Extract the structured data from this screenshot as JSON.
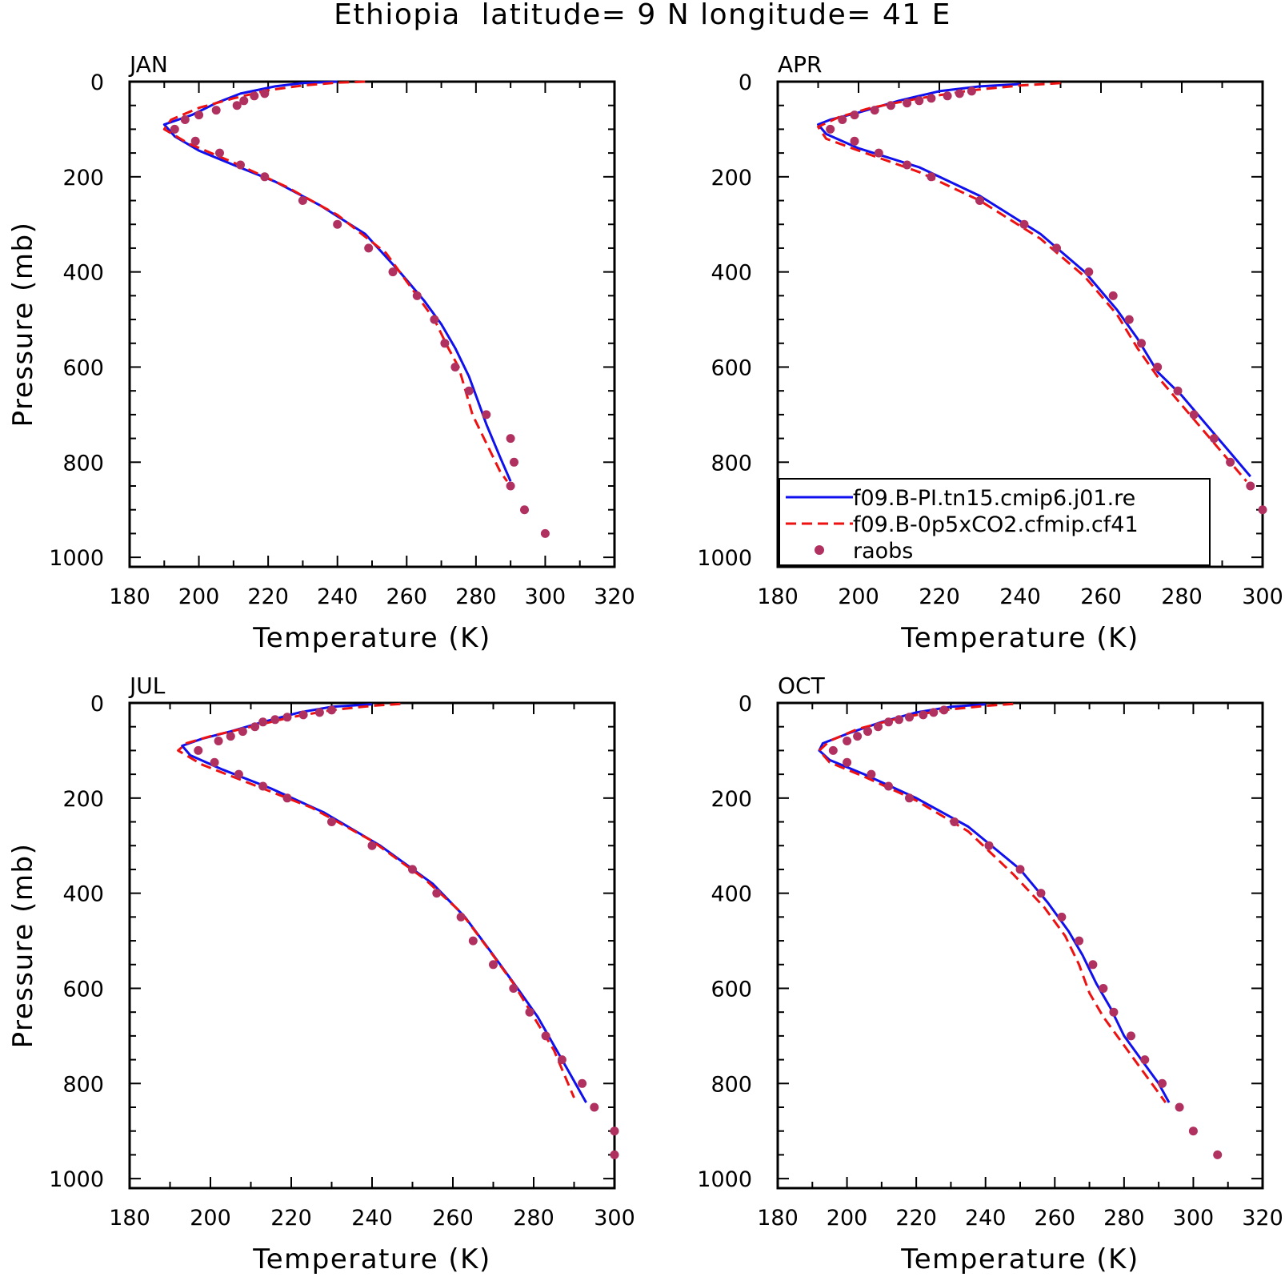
{
  "title": "Ethiopia  latitude= 9 N longitude= 41 E",
  "colors": {
    "model1": "#1010ee",
    "model2": "#ee1111",
    "obs": "#b03060"
  },
  "legend": {
    "placement": "inside APR panel, lower-left",
    "entries": [
      "f09.B-PI.tn15.cmip6.j01.re",
      "f09.B-0p5xCO2.cfmip.cf41",
      "raobs"
    ]
  },
  "chart_data": [
    {
      "type": "line",
      "panel": "JAN",
      "xlabel": "Temperature (K)",
      "ylabel": "Pressure (mb)",
      "xlim": [
        180,
        320
      ],
      "ylim": [
        1020,
        0
      ],
      "xticks": [
        "180",
        "200",
        "220",
        "240",
        "260",
        "280",
        "300",
        "320"
      ],
      "yticks": [
        "0",
        "200",
        "400",
        "600",
        "800",
        "1000"
      ],
      "series": [
        {
          "name": "f09.B-PI.tn15.cmip6.j01.re",
          "style": "solid",
          "x": [
            240,
            230,
            222,
            212,
            205,
            198,
            190,
            193,
            200,
            210,
            222,
            235,
            248,
            258,
            265,
            270,
            274,
            278,
            280,
            283,
            287,
            290
          ],
          "y": [
            0,
            3,
            10,
            25,
            45,
            70,
            90,
            115,
            145,
            175,
            210,
            260,
            320,
            400,
            460,
            510,
            560,
            620,
            660,
            720,
            790,
            840
          ]
        },
        {
          "name": "f09.B-0p5xCO2.cfmip.cf41",
          "style": "dashed",
          "x": [
            248,
            240,
            230,
            220,
            210,
            200,
            192,
            190,
            197,
            210,
            225,
            240,
            254,
            262,
            268,
            272,
            275,
            277,
            279,
            283,
            287,
            289
          ],
          "y": [
            0,
            2,
            8,
            18,
            35,
            55,
            80,
            100,
            130,
            170,
            220,
            280,
            360,
            440,
            500,
            560,
            600,
            650,
            700,
            760,
            820,
            840
          ]
        }
      ],
      "observations": {
        "name": "raobs",
        "x": [
          219,
          216,
          213,
          211,
          205,
          200,
          196,
          193,
          199,
          206,
          212,
          219,
          230,
          240,
          249,
          256,
          263,
          268,
          271,
          274,
          278,
          283,
          290,
          291,
          290,
          294,
          300
        ],
        "y": [
          25,
          30,
          40,
          50,
          60,
          70,
          80,
          100,
          125,
          150,
          175,
          200,
          250,
          300,
          350,
          400,
          450,
          500,
          550,
          600,
          650,
          700,
          750,
          800,
          850,
          900,
          950
        ]
      }
    },
    {
      "type": "line",
      "panel": "APR",
      "xlabel": "Temperature (K)",
      "ylabel": "",
      "xlim": [
        180,
        300
      ],
      "ylim": [
        1020,
        0
      ],
      "xticks": [
        "180",
        "200",
        "220",
        "240",
        "260",
        "280",
        "300"
      ],
      "yticks": [
        "0",
        "200",
        "400",
        "600",
        "800",
        "1000"
      ],
      "series": [
        {
          "name": "f09.B-PI.tn15.cmip6.j01.re",
          "style": "solid",
          "x": [
            240,
            230,
            220,
            210,
            200,
            193,
            190,
            192,
            200,
            215,
            230,
            245,
            256,
            264,
            269,
            274,
            280,
            286,
            292,
            297
          ],
          "y": [
            5,
            10,
            20,
            40,
            65,
            80,
            90,
            110,
            140,
            180,
            240,
            320,
            400,
            480,
            540,
            610,
            660,
            720,
            780,
            830
          ]
        },
        {
          "name": "f09.B-0p5xCO2.cfmip.cf41",
          "style": "dashed",
          "x": [
            250,
            240,
            228,
            215,
            203,
            195,
            190,
            192,
            200,
            215,
            230,
            245,
            256,
            264,
            269,
            274,
            280,
            286,
            292,
            296
          ],
          "y": [
            3,
            8,
            18,
            35,
            55,
            75,
            95,
            120,
            145,
            190,
            250,
            330,
            410,
            490,
            560,
            620,
            680,
            740,
            800,
            840
          ]
        }
      ],
      "observations": {
        "name": "raobs",
        "x": [
          228,
          225,
          222,
          218,
          215,
          212,
          208,
          204,
          199,
          196,
          193,
          199,
          205,
          212,
          218,
          230,
          241,
          249,
          257,
          263,
          267,
          270,
          274,
          279,
          283,
          288,
          292,
          297,
          300
        ],
        "y": [
          20,
          25,
          30,
          35,
          40,
          45,
          50,
          60,
          70,
          80,
          100,
          125,
          150,
          175,
          200,
          250,
          300,
          350,
          400,
          450,
          500,
          550,
          600,
          650,
          700,
          750,
          800,
          850,
          900
        ]
      }
    },
    {
      "type": "line",
      "panel": "JUL",
      "xlabel": "Temperature (K)",
      "ylabel": "Pressure (mb)",
      "xlim": [
        180,
        300
      ],
      "ylim": [
        1020,
        0
      ],
      "xticks": [
        "180",
        "200",
        "220",
        "240",
        "260",
        "280",
        "300"
      ],
      "yticks": [
        "0",
        "200",
        "400",
        "600",
        "800",
        "1000"
      ],
      "series": [
        {
          "name": "f09.B-PI.tn15.cmip6.j01.re",
          "style": "solid",
          "x": [
            240,
            230,
            222,
            213,
            205,
            198,
            193,
            195,
            203,
            215,
            228,
            242,
            255,
            263,
            270,
            276,
            281,
            285,
            289,
            293
          ],
          "y": [
            3,
            8,
            20,
            40,
            60,
            75,
            90,
            110,
            140,
            180,
            230,
            300,
            380,
            450,
            530,
            600,
            660,
            720,
            780,
            840
          ]
        },
        {
          "name": "f09.B-0p5xCO2.cfmip.cf41",
          "style": "dashed",
          "x": [
            247,
            240,
            230,
            220,
            210,
            200,
            194,
            192,
            198,
            210,
            225,
            240,
            253,
            262,
            269,
            275,
            280,
            285,
            290
          ],
          "y": [
            2,
            6,
            15,
            30,
            50,
            70,
            85,
            100,
            130,
            170,
            220,
            290,
            370,
            440,
            520,
            590,
            660,
            730,
            830
          ]
        }
      ],
      "observations": {
        "name": "raobs",
        "x": [
          230,
          227,
          223,
          219,
          216,
          213,
          211,
          208,
          205,
          202,
          197,
          201,
          207,
          213,
          219,
          230,
          240,
          250,
          256,
          262,
          265,
          270,
          275,
          279,
          283,
          287,
          292,
          295,
          300,
          300
        ],
        "y": [
          15,
          20,
          25,
          30,
          35,
          40,
          50,
          60,
          70,
          80,
          100,
          125,
          150,
          175,
          200,
          250,
          300,
          350,
          400,
          450,
          500,
          550,
          600,
          650,
          700,
          750,
          800,
          850,
          900,
          950
        ]
      }
    },
    {
      "type": "line",
      "panel": "OCT",
      "xlabel": "Temperature (K)",
      "ylabel": "",
      "xlim": [
        180,
        320
      ],
      "ylim": [
        1020,
        0
      ],
      "xticks": [
        "180",
        "200",
        "220",
        "240",
        "260",
        "280",
        "300",
        "320"
      ],
      "yticks": [
        "0",
        "200",
        "400",
        "600",
        "800",
        "1000"
      ],
      "series": [
        {
          "name": "f09.B-PI.tn15.cmip6.j01.re",
          "style": "solid",
          "x": [
            240,
            230,
            220,
            210,
            200,
            193,
            192,
            195,
            205,
            220,
            235,
            250,
            258,
            264,
            268,
            272,
            276,
            280,
            286,
            290,
            293
          ],
          "y": [
            3,
            8,
            20,
            40,
            65,
            85,
            100,
            120,
            150,
            200,
            260,
            350,
            420,
            480,
            530,
            590,
            640,
            700,
            760,
            800,
            840
          ]
        },
        {
          "name": "f09.B-0p5xCO2.cfmip.cf41",
          "style": "dashed",
          "x": [
            248,
            240,
            228,
            215,
            203,
            195,
            192,
            195,
            205,
            220,
            235,
            248,
            257,
            263,
            267,
            270,
            274,
            280,
            286,
            292
          ],
          "y": [
            2,
            6,
            15,
            32,
            55,
            80,
            100,
            125,
            155,
            205,
            270,
            360,
            430,
            490,
            550,
            610,
            660,
            720,
            780,
            840
          ]
        }
      ],
      "observations": {
        "name": "raobs",
        "x": [
          228,
          225,
          222,
          218,
          215,
          212,
          209,
          206,
          203,
          200,
          196,
          200,
          207,
          212,
          218,
          231,
          241,
          250,
          256,
          262,
          267,
          271,
          274,
          277,
          282,
          286,
          291,
          296,
          300,
          307
        ],
        "y": [
          15,
          20,
          25,
          30,
          35,
          40,
          50,
          60,
          70,
          80,
          100,
          125,
          150,
          175,
          200,
          250,
          300,
          350,
          400,
          450,
          500,
          550,
          600,
          650,
          700,
          750,
          800,
          850,
          900,
          950
        ]
      }
    }
  ]
}
